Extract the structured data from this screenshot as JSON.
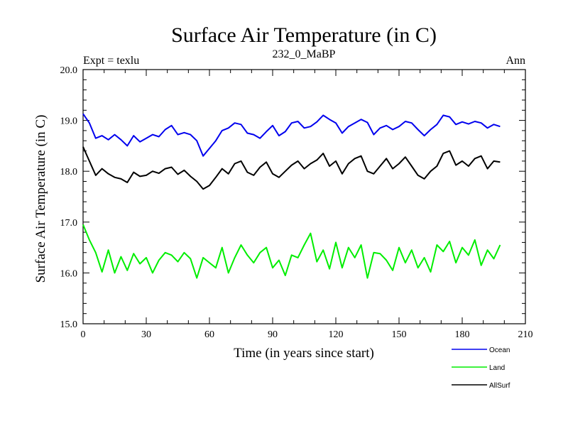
{
  "chart_data": {
    "type": "line",
    "title": "Surface Air Temperature (in C)",
    "subtitle": "232_0_MaBP",
    "left_label": "Expt = texlu",
    "right_label": "Ann",
    "xlabel": "Time (in years since start)",
    "ylabel": "Surface Air Temperature (in C)",
    "xlim": [
      0,
      210
    ],
    "ylim": [
      15,
      20
    ],
    "x_ticks": [
      "0",
      "30",
      "60",
      "90",
      "120",
      "150",
      "180",
      "210"
    ],
    "y_ticks": [
      "15.0",
      "16.0",
      "17.0",
      "18.0",
      "19.0",
      "20.0"
    ],
    "legend_position": "bottom-right",
    "series": [
      {
        "name": "Ocean",
        "color": "#0000ee",
        "x": [
          0,
          3,
          6,
          9,
          12,
          15,
          18,
          21,
          24,
          27,
          30,
          33,
          36,
          39,
          42,
          45,
          48,
          51,
          54,
          57,
          60,
          63,
          66,
          69,
          72,
          75,
          78,
          81,
          84,
          87,
          90,
          93,
          96,
          99,
          102,
          105,
          108,
          111,
          114,
          117,
          120,
          123,
          126,
          129,
          132,
          135,
          138,
          141,
          144,
          147,
          150,
          153,
          156,
          159,
          162,
          165,
          168,
          171,
          174,
          177,
          180,
          183,
          186,
          189,
          192,
          195,
          198
        ],
        "values": [
          19.13,
          18.95,
          18.65,
          18.7,
          18.62,
          18.72,
          18.62,
          18.5,
          18.7,
          18.58,
          18.65,
          18.72,
          18.68,
          18.82,
          18.9,
          18.72,
          18.76,
          18.72,
          18.6,
          18.3,
          18.45,
          18.6,
          18.8,
          18.85,
          18.95,
          18.92,
          18.75,
          18.72,
          18.65,
          18.78,
          18.9,
          18.7,
          18.78,
          18.95,
          18.98,
          18.85,
          18.88,
          18.97,
          19.1,
          19.02,
          18.95,
          18.75,
          18.88,
          18.95,
          19.02,
          18.96,
          18.72,
          18.85,
          18.9,
          18.82,
          18.88,
          18.98,
          18.95,
          18.82,
          18.7,
          18.82,
          18.92,
          19.1,
          19.07,
          18.92,
          18.97,
          18.93,
          18.98,
          18.95,
          18.85,
          18.92,
          18.88
        ]
      },
      {
        "name": "Land",
        "color": "#00ee00",
        "x": [
          0,
          3,
          6,
          9,
          12,
          15,
          18,
          21,
          24,
          27,
          30,
          33,
          36,
          39,
          42,
          45,
          48,
          51,
          54,
          57,
          60,
          63,
          66,
          69,
          72,
          75,
          78,
          81,
          84,
          87,
          90,
          93,
          96,
          99,
          102,
          105,
          108,
          111,
          114,
          117,
          120,
          123,
          126,
          129,
          132,
          135,
          138,
          141,
          144,
          147,
          150,
          153,
          156,
          159,
          162,
          165,
          168,
          171,
          174,
          177,
          180,
          183,
          186,
          189,
          192,
          195,
          198
        ],
        "values": [
          16.95,
          16.65,
          16.4,
          16.02,
          16.45,
          16.0,
          16.32,
          16.05,
          16.38,
          16.18,
          16.3,
          16.0,
          16.25,
          16.4,
          16.35,
          16.22,
          16.4,
          16.28,
          15.9,
          16.3,
          16.2,
          16.1,
          16.5,
          16.0,
          16.3,
          16.55,
          16.35,
          16.2,
          16.4,
          16.5,
          16.1,
          16.25,
          15.95,
          16.35,
          16.3,
          16.55,
          16.78,
          16.22,
          16.45,
          16.08,
          16.6,
          16.1,
          16.5,
          16.3,
          16.55,
          15.9,
          16.4,
          16.38,
          16.25,
          16.05,
          16.5,
          16.2,
          16.45,
          16.1,
          16.3,
          16.02,
          16.55,
          16.42,
          16.62,
          16.2,
          16.5,
          16.35,
          16.65,
          16.15,
          16.45,
          16.28,
          16.55
        ]
      },
      {
        "name": "AllSurf",
        "color": "#000000",
        "x": [
          0,
          3,
          6,
          9,
          12,
          15,
          18,
          21,
          24,
          27,
          30,
          33,
          36,
          39,
          42,
          45,
          48,
          51,
          54,
          57,
          60,
          63,
          66,
          69,
          72,
          75,
          78,
          81,
          84,
          87,
          90,
          93,
          96,
          99,
          102,
          105,
          108,
          111,
          114,
          117,
          120,
          123,
          126,
          129,
          132,
          135,
          138,
          141,
          144,
          147,
          150,
          153,
          156,
          159,
          162,
          165,
          168,
          171,
          174,
          177,
          180,
          183,
          186,
          189,
          192,
          195,
          198
        ],
        "values": [
          18.48,
          18.2,
          17.92,
          18.05,
          17.95,
          17.88,
          17.85,
          17.78,
          17.98,
          17.9,
          17.92,
          18.0,
          17.96,
          18.05,
          18.08,
          17.94,
          18.02,
          17.9,
          17.8,
          17.65,
          17.72,
          17.88,
          18.05,
          17.95,
          18.15,
          18.2,
          17.98,
          17.92,
          18.08,
          18.18,
          17.95,
          17.88,
          18.0,
          18.12,
          18.2,
          18.05,
          18.15,
          18.22,
          18.35,
          18.1,
          18.2,
          17.95,
          18.15,
          18.25,
          18.3,
          18.0,
          17.95,
          18.1,
          18.25,
          18.05,
          18.15,
          18.28,
          18.1,
          17.92,
          17.85,
          18.0,
          18.1,
          18.35,
          18.4,
          18.12,
          18.2,
          18.1,
          18.25,
          18.3,
          18.05,
          18.2,
          18.18
        ]
      }
    ]
  }
}
